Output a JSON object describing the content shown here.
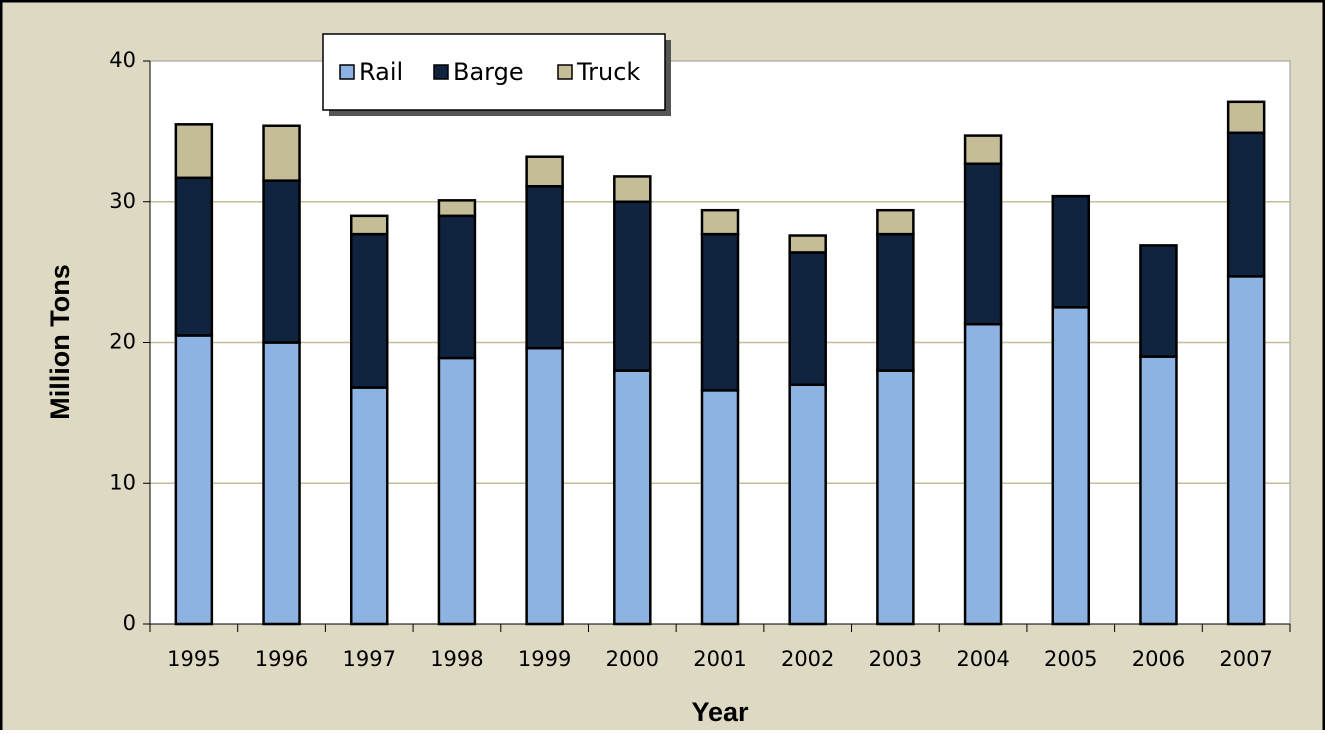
{
  "chart_data": {
    "type": "stacked_bar",
    "xlabel": "Year",
    "ylabel": "Million Tons",
    "categories": [
      "1995",
      "1996",
      "1997",
      "1998",
      "1999",
      "2000",
      "2001",
      "2002",
      "2003",
      "2004",
      "2005",
      "2006",
      "2007"
    ],
    "series": [
      {
        "name": "Rail",
        "color": "#8db3e2",
        "values": [
          20.5,
          20.0,
          16.8,
          18.9,
          19.6,
          18.0,
          16.6,
          17.0,
          18.0,
          21.3,
          22.5,
          19.0,
          24.7
        ]
      },
      {
        "name": "Barge",
        "color": "#10243f",
        "values": [
          11.2,
          11.5,
          10.9,
          10.1,
          11.5,
          12.0,
          11.1,
          9.4,
          9.7,
          11.4,
          7.9,
          7.9,
          10.2
        ]
      },
      {
        "name": "Truck",
        "color": "#c4bd97",
        "values": [
          3.8,
          3.9,
          1.3,
          1.1,
          2.1,
          1.8,
          1.7,
          1.2,
          1.7,
          2.0,
          0,
          0,
          2.2
        ]
      }
    ],
    "ylim": [
      0,
      40
    ],
    "yticks": [
      0,
      10,
      20,
      30,
      40
    ],
    "grid": true
  }
}
